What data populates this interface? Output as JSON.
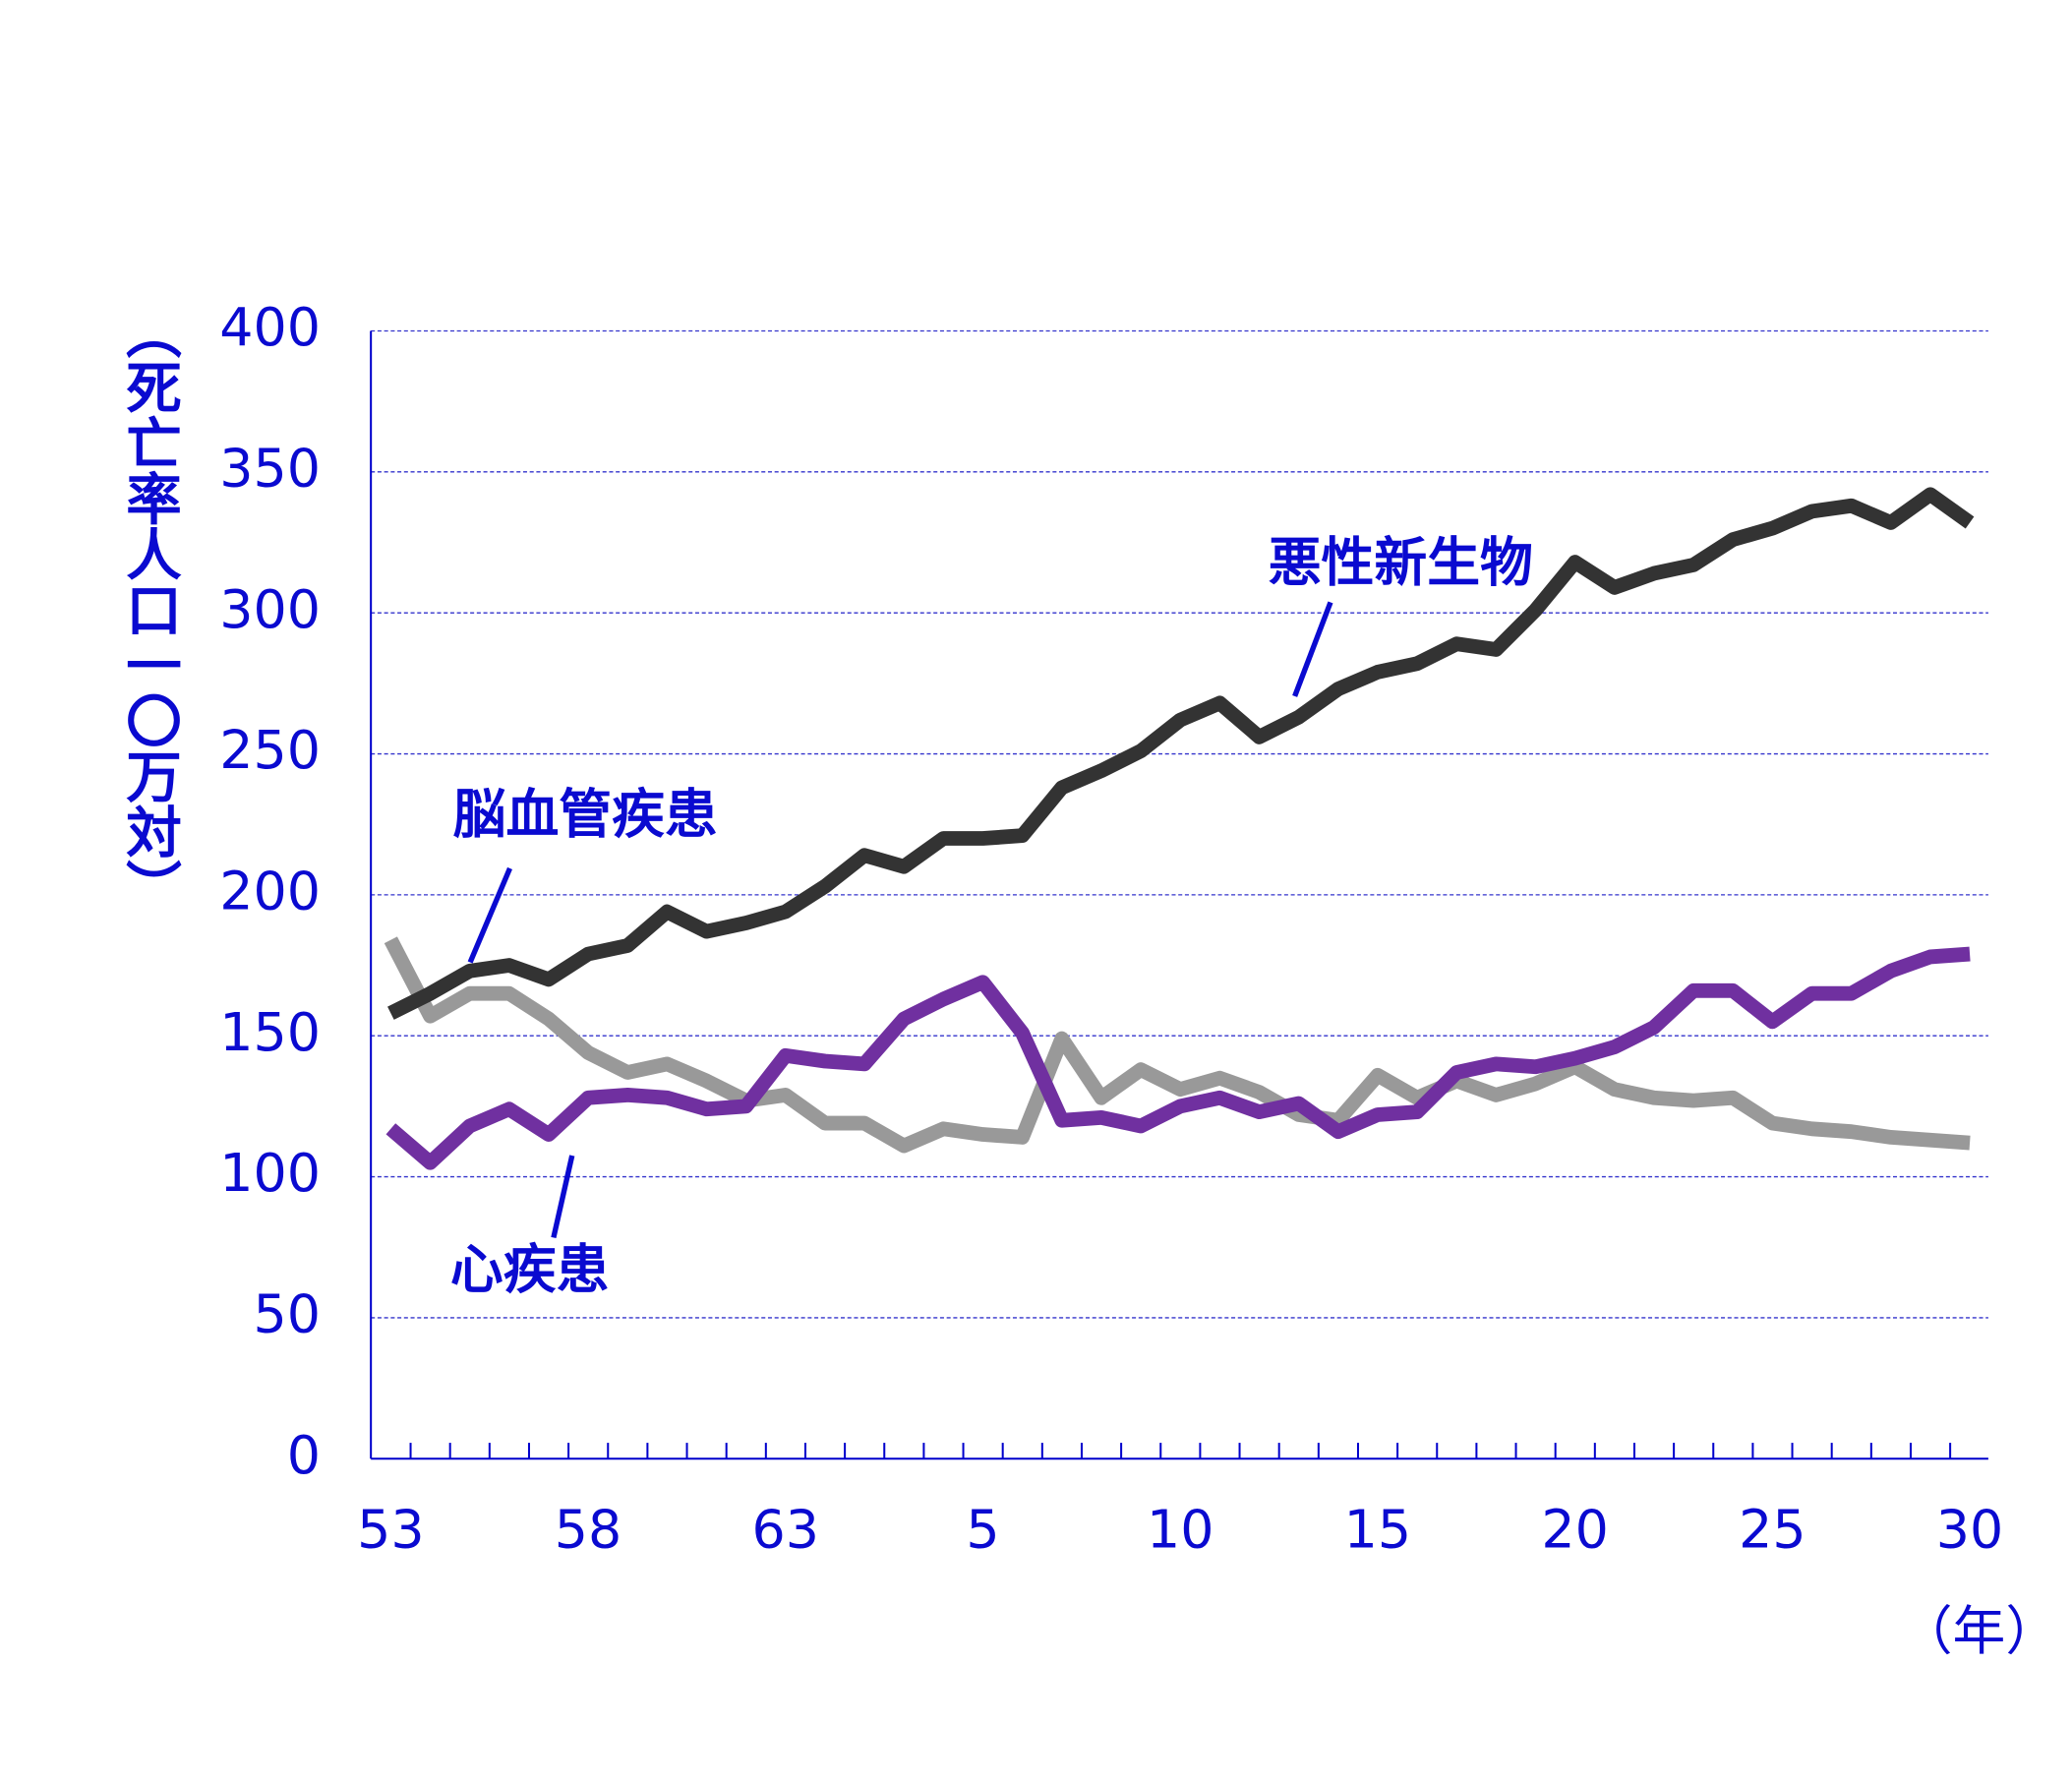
{
  "chart_data": {
    "type": "line",
    "y_label": "（死亡率人口一〇万対）",
    "x_label": "（年）",
    "categories": [
      "53",
      null,
      null,
      null,
      null,
      "58",
      null,
      null,
      null,
      null,
      "63",
      null,
      null,
      null,
      null,
      "5",
      null,
      null,
      null,
      null,
      "10",
      null,
      null,
      null,
      null,
      "15",
      null,
      null,
      null,
      null,
      "20",
      null,
      null,
      null,
      null,
      "25",
      null,
      null,
      null,
      null,
      "30"
    ],
    "series": [
      {
        "name": "悪性新生物",
        "color": "#333333",
        "values": [
          158,
          165,
          173,
          175,
          170,
          179,
          182,
          194,
          187,
          190,
          194,
          203,
          214,
          210,
          220,
          220,
          221,
          238,
          244,
          251,
          262,
          268,
          256,
          263,
          273,
          279,
          282,
          289,
          287,
          301,
          318,
          309,
          314,
          317,
          326,
          330,
          336,
          338,
          332,
          342,
          332
        ]
      },
      {
        "name": "脳血管疾患",
        "color": "#999999",
        "values": [
          184,
          157,
          165,
          165,
          156,
          144,
          137,
          140,
          134,
          127,
          129,
          119,
          119,
          111,
          117,
          115,
          114,
          149,
          128,
          138,
          131,
          135,
          130,
          122,
          120,
          136,
          128,
          134,
          129,
          133,
          139,
          131,
          128,
          127,
          128,
          119,
          117,
          116,
          114,
          113,
          112
        ]
      },
      {
        "name": "心疾患",
        "color": "#7030a0",
        "values": [
          117,
          105,
          118,
          124,
          115,
          128,
          129,
          128,
          124,
          125,
          143,
          141,
          140,
          156,
          163,
          169,
          151,
          120,
          121,
          118,
          125,
          128,
          123,
          126,
          116,
          122,
          123,
          137,
          140,
          139,
          142,
          146,
          153,
          166,
          166,
          155,
          165,
          165,
          173,
          178,
          179
        ]
      }
    ],
    "ylim": [
      0,
      400
    ],
    "yticks": [
      0,
      50,
      100,
      150,
      200,
      250,
      300,
      350,
      400
    ],
    "grid": true
  }
}
